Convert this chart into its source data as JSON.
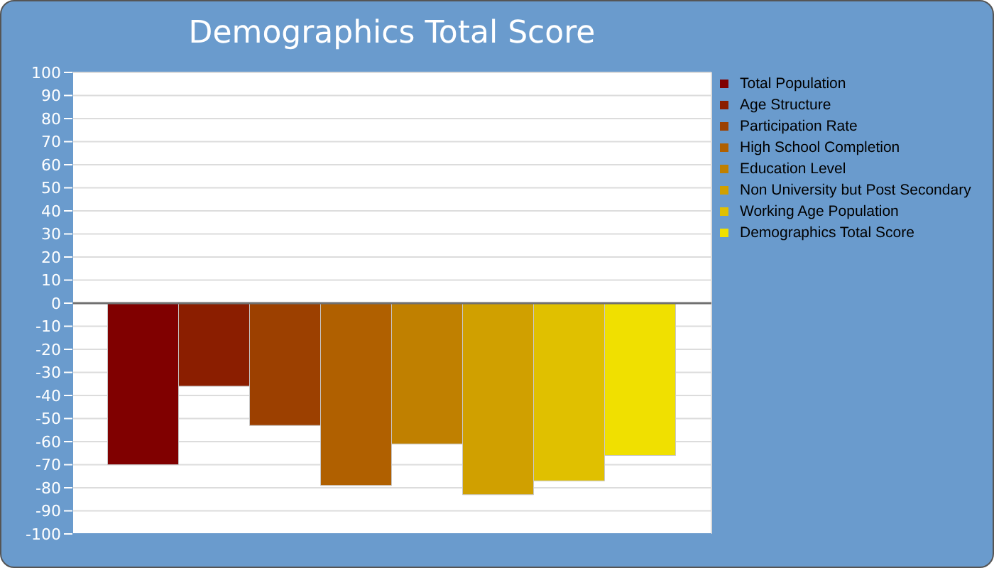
{
  "chart_data": {
    "type": "bar",
    "title": "Demographics Total Score",
    "categories": [
      null
    ],
    "series": [
      {
        "name": "Total Population",
        "color": "#800000",
        "values": [
          -70
        ]
      },
      {
        "name": "Age Structure",
        "color": "#8b1e00",
        "values": [
          -36
        ]
      },
      {
        "name": "Participation Rate",
        "color": "#9c4000",
        "values": [
          -53
        ]
      },
      {
        "name": "High School Completion",
        "color": "#b06000",
        "values": [
          -79
        ]
      },
      {
        "name": "Education Level",
        "color": "#c08000",
        "values": [
          -61
        ]
      },
      {
        "name": "Non University but Post Secondary",
        "color": "#d0a000",
        "values": [
          -83
        ]
      },
      {
        "name": "Working Age Population",
        "color": "#e0c000",
        "values": [
          -77
        ]
      },
      {
        "name": "Demographics Total Score",
        "color": "#f0e000",
        "values": [
          -66
        ]
      }
    ],
    "ylim": [
      -100,
      100
    ],
    "yticks": [
      -100,
      -90,
      -80,
      -70,
      -60,
      -50,
      -40,
      -30,
      -20,
      -10,
      0,
      10,
      20,
      30,
      40,
      50,
      60,
      70,
      80,
      90,
      100
    ],
    "ref_lines": [
      {
        "axis": "y",
        "value": 0,
        "color": "#707070"
      }
    ],
    "grid": true,
    "legend": "top right",
    "tick_labels": "y"
  }
}
